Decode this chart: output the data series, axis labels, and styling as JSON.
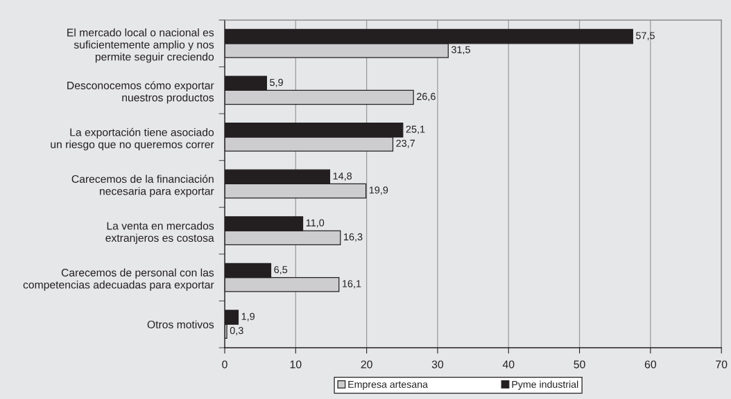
{
  "chart_data": {
    "type": "bar",
    "orientation": "horizontal",
    "categories": [
      "El mercado local o nacional es\nsuficientemente amplio y nos\npermite seguir creciendo",
      "Desconocemos cómo exportar\nnuestros productos",
      "La exportación tiene asociado\nun riesgo que no queremos correr",
      "Carecemos de la financiación\nnecesaria para exportar",
      "La venta en mercados\nextranjeros es costosa",
      "Carecemos de personal con las\ncompetencias adecuadas para exportar",
      "Otros motivos"
    ],
    "series": [
      {
        "name": "Empresa artesana",
        "color": "#cdcdcf",
        "values": [
          31.5,
          26.6,
          23.7,
          19.9,
          16.3,
          16.1,
          0.3
        ],
        "value_labels": [
          "31,5",
          "26,6",
          "23,7",
          "19,9",
          "16,3",
          "16,1",
          "0,3"
        ]
      },
      {
        "name": "Pyme industrial",
        "color": "#231f20",
        "values": [
          57.5,
          5.9,
          25.1,
          14.8,
          11.0,
          6.5,
          1.9
        ],
        "value_labels": [
          "57,5",
          "5,9",
          "25,1",
          "14,8",
          "11,0",
          "6,5",
          "1,9"
        ]
      }
    ],
    "xlim": [
      0,
      70
    ],
    "xticks": [
      0,
      10,
      20,
      30,
      40,
      50,
      60,
      70
    ],
    "grid": "x",
    "legend": "bottom"
  }
}
